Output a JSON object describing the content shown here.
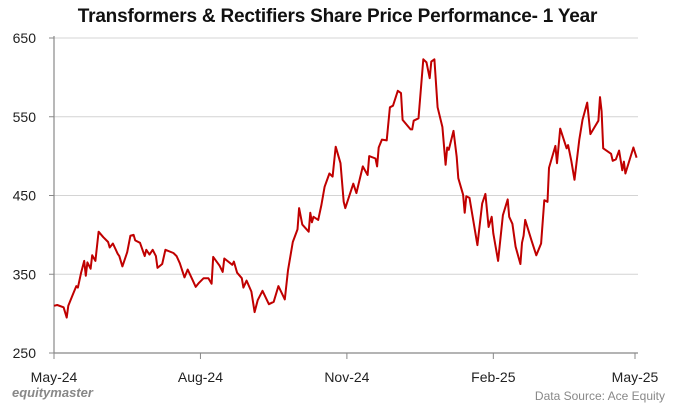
{
  "chart_data": {
    "type": "line",
    "title": "Transformers & Rectifiers Share Price Performance- 1 Year",
    "xlabel": "",
    "ylabel": "",
    "ylim": [
      250,
      650
    ],
    "yticks": [
      250,
      350,
      450,
      550,
      650
    ],
    "xlim": [
      "2024-05-01",
      "2025-05-01"
    ],
    "xticks": [
      {
        "date": "2024-05-01",
        "label": "May-24"
      },
      {
        "date": "2024-08-01",
        "label": "Aug-24"
      },
      {
        "date": "2024-11-01",
        "label": "Nov-24"
      },
      {
        "date": "2025-02-01",
        "label": "Feb-25"
      },
      {
        "date": "2025-05-01",
        "label": "May-25"
      }
    ],
    "grid": "horizontal",
    "line_color": "#c00000",
    "series": [
      {
        "points": [
          [
            "2024-05-01",
            310
          ],
          [
            "2024-05-03",
            311
          ],
          [
            "2024-05-07",
            308
          ],
          [
            "2024-05-09",
            295
          ],
          [
            "2024-05-10",
            310
          ],
          [
            "2024-05-13",
            325
          ],
          [
            "2024-05-15",
            335
          ],
          [
            "2024-05-16",
            333
          ],
          [
            "2024-05-18",
            352
          ],
          [
            "2024-05-20",
            367
          ],
          [
            "2024-05-21",
            348
          ],
          [
            "2024-05-22",
            365
          ],
          [
            "2024-05-24",
            357
          ],
          [
            "2024-05-25",
            374
          ],
          [
            "2024-05-27",
            367
          ],
          [
            "2024-05-29",
            404
          ],
          [
            "2024-06-01",
            397
          ],
          [
            "2024-06-04",
            391
          ],
          [
            "2024-06-05",
            384
          ],
          [
            "2024-06-07",
            389
          ],
          [
            "2024-06-10",
            376
          ],
          [
            "2024-06-11",
            373
          ],
          [
            "2024-06-13",
            360
          ],
          [
            "2024-06-16",
            378
          ],
          [
            "2024-06-18",
            399
          ],
          [
            "2024-06-20",
            400
          ],
          [
            "2024-06-21",
            393
          ],
          [
            "2024-06-24",
            390
          ],
          [
            "2024-06-27",
            373
          ],
          [
            "2024-06-28",
            381
          ],
          [
            "2024-06-30",
            375
          ],
          [
            "2024-07-02",
            381
          ],
          [
            "2024-07-04",
            373
          ],
          [
            "2024-07-05",
            358
          ],
          [
            "2024-07-08",
            363
          ],
          [
            "2024-07-10",
            381
          ],
          [
            "2024-07-15",
            377
          ],
          [
            "2024-07-17",
            373
          ],
          [
            "2024-07-19",
            364
          ],
          [
            "2024-07-22",
            346
          ],
          [
            "2024-07-24",
            356
          ],
          [
            "2024-07-27",
            343
          ],
          [
            "2024-07-29",
            334
          ],
          [
            "2024-07-31",
            339
          ],
          [
            "2024-08-03",
            345
          ],
          [
            "2024-08-06",
            345
          ],
          [
            "2024-08-08",
            338
          ],
          [
            "2024-08-09",
            372
          ],
          [
            "2024-08-13",
            361
          ],
          [
            "2024-08-15",
            353
          ],
          [
            "2024-08-16",
            370
          ],
          [
            "2024-08-21",
            362
          ],
          [
            "2024-08-22",
            366
          ],
          [
            "2024-08-24",
            352
          ],
          [
            "2024-08-27",
            345
          ],
          [
            "2024-08-28",
            333
          ],
          [
            "2024-08-30",
            342
          ],
          [
            "2024-09-02",
            328
          ],
          [
            "2024-09-04",
            302
          ],
          [
            "2024-09-06",
            317
          ],
          [
            "2024-09-09",
            329
          ],
          [
            "2024-09-13",
            312
          ],
          [
            "2024-09-16",
            315
          ],
          [
            "2024-09-19",
            335
          ],
          [
            "2024-09-23",
            318
          ],
          [
            "2024-09-25",
            355
          ],
          [
            "2024-09-28",
            391
          ],
          [
            "2024-10-01",
            407
          ],
          [
            "2024-10-02",
            434
          ],
          [
            "2024-10-04",
            413
          ],
          [
            "2024-10-08",
            404
          ],
          [
            "2024-10-09",
            428
          ],
          [
            "2024-10-10",
            416
          ],
          [
            "2024-10-11",
            423
          ],
          [
            "2024-10-14",
            419
          ],
          [
            "2024-10-16",
            438
          ],
          [
            "2024-10-18",
            461
          ],
          [
            "2024-10-21",
            478
          ],
          [
            "2024-10-23",
            474
          ],
          [
            "2024-10-25",
            512
          ],
          [
            "2024-10-28",
            491
          ],
          [
            "2024-10-30",
            442
          ],
          [
            "2024-10-31",
            434
          ],
          [
            "2024-11-05",
            465
          ],
          [
            "2024-11-07",
            453
          ],
          [
            "2024-11-11",
            487
          ],
          [
            "2024-11-14",
            476
          ],
          [
            "2024-11-15",
            500
          ],
          [
            "2024-11-19",
            497
          ],
          [
            "2024-11-20",
            487
          ],
          [
            "2024-11-21",
            511
          ],
          [
            "2024-11-23",
            521
          ],
          [
            "2024-11-26",
            520
          ],
          [
            "2024-11-28",
            562
          ],
          [
            "2024-11-30",
            564
          ],
          [
            "2024-12-03",
            583
          ],
          [
            "2024-12-05",
            580
          ],
          [
            "2024-12-06",
            546
          ],
          [
            "2024-12-11",
            534
          ],
          [
            "2024-12-12",
            534
          ],
          [
            "2024-12-13",
            545
          ],
          [
            "2024-12-16",
            548
          ],
          [
            "2024-12-19",
            623
          ],
          [
            "2024-12-21",
            619
          ],
          [
            "2024-12-23",
            599
          ],
          [
            "2024-12-24",
            620
          ],
          [
            "2024-12-26",
            623
          ],
          [
            "2024-12-28",
            562
          ],
          [
            "2024-12-31",
            537
          ],
          [
            "2025-01-02",
            489
          ],
          [
            "2025-01-03",
            511
          ],
          [
            "2025-01-04",
            508
          ],
          [
            "2025-01-07",
            532
          ],
          [
            "2025-01-09",
            499
          ],
          [
            "2025-01-10",
            472
          ],
          [
            "2025-01-13",
            451
          ],
          [
            "2025-01-14",
            428
          ],
          [
            "2025-01-15",
            449
          ],
          [
            "2025-01-17",
            447
          ],
          [
            "2025-01-22",
            387
          ],
          [
            "2025-01-25",
            440
          ],
          [
            "2025-01-27",
            452
          ],
          [
            "2025-01-29",
            410
          ],
          [
            "2025-01-31",
            423
          ],
          [
            "2025-02-01",
            402
          ],
          [
            "2025-02-04",
            367
          ],
          [
            "2025-02-07",
            425
          ],
          [
            "2025-02-10",
            445
          ],
          [
            "2025-02-11",
            423
          ],
          [
            "2025-02-13",
            414
          ],
          [
            "2025-02-15",
            385
          ],
          [
            "2025-02-18",
            363
          ],
          [
            "2025-02-19",
            390
          ],
          [
            "2025-02-20",
            399
          ],
          [
            "2025-02-21",
            419
          ],
          [
            "2025-02-25",
            393
          ],
          [
            "2025-02-28",
            374
          ],
          [
            "2025-03-03",
            389
          ],
          [
            "2025-03-05",
            444
          ],
          [
            "2025-03-07",
            442
          ],
          [
            "2025-03-08",
            485
          ],
          [
            "2025-03-12",
            513
          ],
          [
            "2025-03-13",
            491
          ],
          [
            "2025-03-15",
            535
          ],
          [
            "2025-03-19",
            510
          ],
          [
            "2025-03-20",
            514
          ],
          [
            "2025-03-22",
            494
          ],
          [
            "2025-03-24",
            470
          ],
          [
            "2025-03-27",
            521
          ],
          [
            "2025-03-29",
            546
          ],
          [
            "2025-04-01",
            568
          ],
          [
            "2025-04-03",
            528
          ],
          [
            "2025-04-08",
            545
          ],
          [
            "2025-04-09",
            575
          ],
          [
            "2025-04-10",
            557
          ],
          [
            "2025-04-11",
            510
          ],
          [
            "2025-04-16",
            503
          ],
          [
            "2025-04-17",
            494
          ],
          [
            "2025-04-19",
            496
          ],
          [
            "2025-04-21",
            507
          ],
          [
            "2025-04-23",
            482
          ],
          [
            "2025-04-24",
            493
          ],
          [
            "2025-04-25",
            478
          ],
          [
            "2025-04-30",
            511
          ],
          [
            "2025-05-02",
            498
          ]
        ]
      }
    ]
  },
  "branding": {
    "logo": "equitymaster"
  },
  "source": "Data Source: Ace Equity"
}
